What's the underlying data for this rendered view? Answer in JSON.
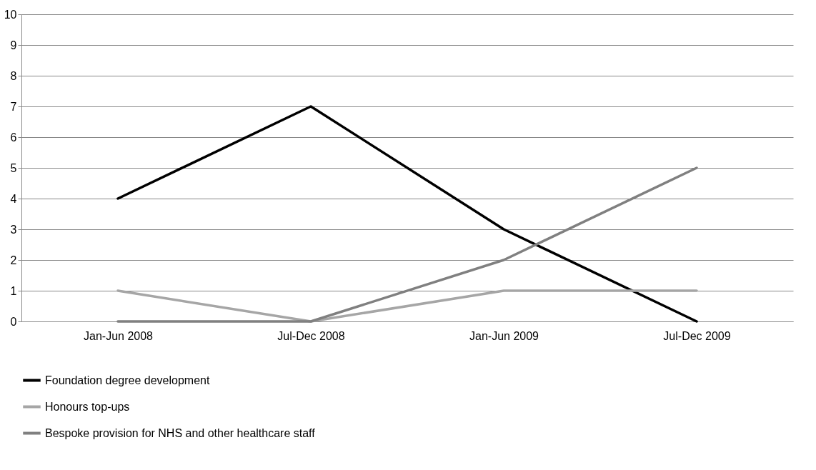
{
  "chart_data": {
    "type": "line",
    "categories": [
      "Jan-Jun 2008",
      "Jul-Dec 2008",
      "Jan-Jun 2009",
      "Jul-Dec 2009"
    ],
    "series": [
      {
        "name": "Foundation degree development",
        "color": "#000000",
        "values": [
          4,
          7,
          3,
          0
        ]
      },
      {
        "name": "Honours top-ups",
        "color": "#a6a6a6",
        "values": [
          1,
          0,
          1,
          1
        ]
      },
      {
        "name": "Bespoke provision for NHS and other healthcare staff",
        "color": "#808080",
        "values": [
          0,
          0,
          2,
          5
        ]
      }
    ],
    "ylim": [
      0,
      10
    ],
    "yticks": [
      0,
      1,
      2,
      3,
      4,
      5,
      6,
      7,
      8,
      9,
      10
    ],
    "grid": "y",
    "legend": "bottom",
    "line_style": "solid"
  }
}
